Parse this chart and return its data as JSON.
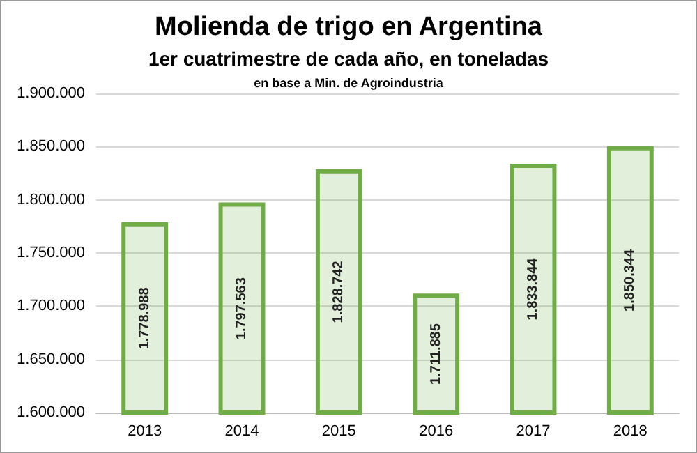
{
  "chart_data": {
    "type": "bar",
    "title": "Molienda de trigo en Argentina",
    "subtitle": "1er cuatrimestre de cada año, en toneladas",
    "annotations": [
      "en base a Min. de Agroindustria"
    ],
    "categories": [
      "2013",
      "2014",
      "2015",
      "2016",
      "2017",
      "2018"
    ],
    "values": [
      1778988,
      1797563,
      1828742,
      1711885,
      1833844,
      1850344
    ],
    "value_labels": [
      "1.778.988",
      "1.797.563",
      "1.828.742",
      "1.711.885",
      "1.833.844",
      "1.850.344"
    ],
    "color": "#70ad47",
    "ylim": [
      1600000,
      1900000
    ],
    "yticks": [
      {
        "value": 1600000,
        "label": "1.600.000"
      },
      {
        "value": 1650000,
        "label": "1.650.000"
      },
      {
        "value": 1700000,
        "label": "1.700.000"
      },
      {
        "value": 1750000,
        "label": "1.750.000"
      },
      {
        "value": 1800000,
        "label": "1.800.000"
      },
      {
        "value": 1850000,
        "label": "1.850.000"
      },
      {
        "value": 1900000,
        "label": "1.900.000"
      }
    ],
    "grid": "y"
  }
}
